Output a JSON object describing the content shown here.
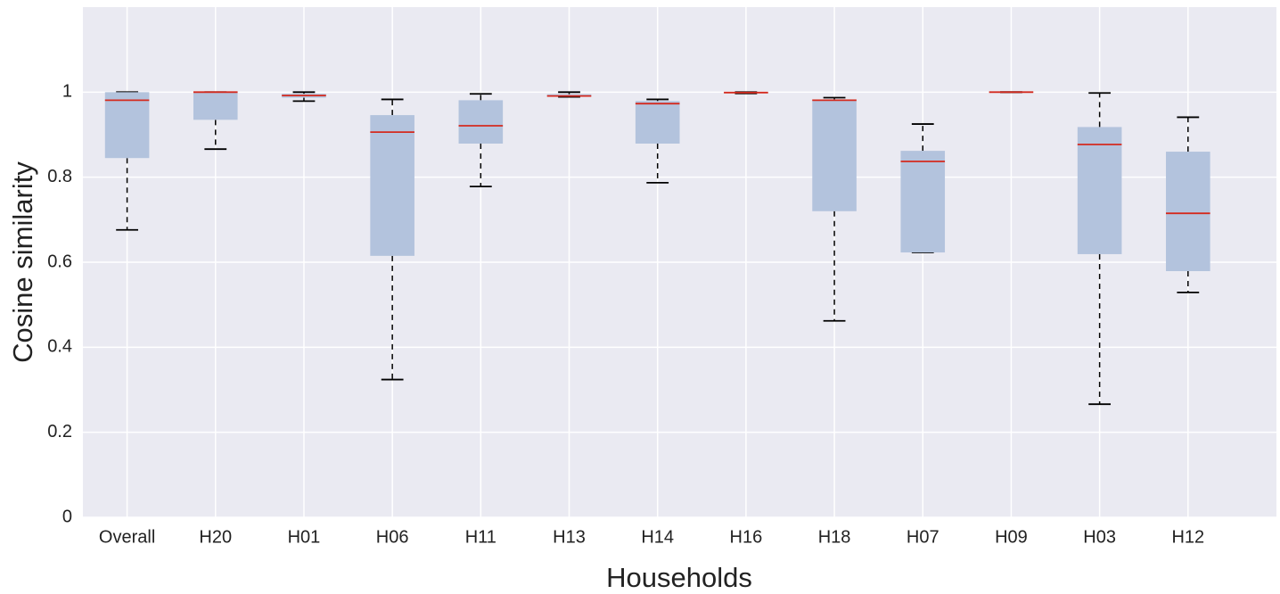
{
  "chart_data": {
    "type": "box",
    "x_label": "Households",
    "y_label": "Cosine similarity",
    "categories": [
      "Overall",
      "H20",
      "H01",
      "H06",
      "H11",
      "H13",
      "H14",
      "H16",
      "H18",
      "H07",
      "H09",
      "H03",
      "H12"
    ],
    "whislo": [
      0.676,
      0.866,
      0.979,
      0.324,
      0.778,
      0.989,
      0.787,
      0.997,
      0.462,
      0.623,
      1.0,
      0.266,
      0.529
    ],
    "q1": [
      0.845,
      0.935,
      0.987,
      0.615,
      0.879,
      0.99,
      0.879,
      0.998,
      0.72,
      0.623,
      1.0,
      0.619,
      0.579
    ],
    "median": [
      0.981,
      1.0,
      0.992,
      0.906,
      0.921,
      0.991,
      0.973,
      0.999,
      0.981,
      0.837,
      1.0,
      0.877,
      0.715
    ],
    "q3": [
      1.0,
      1.0,
      0.996,
      0.946,
      0.981,
      0.995,
      0.979,
      1.0,
      0.983,
      0.862,
      1.0,
      0.918,
      0.86
    ],
    "whishi": [
      1.0,
      1.0,
      1.0,
      0.983,
      0.996,
      1.0,
      0.983,
      1.0,
      0.987,
      0.925,
      1.0,
      0.998,
      0.941
    ],
    "box_color": "#b3c3dd",
    "median_color": "#d42a1e",
    "whisker_color": "#000000",
    "ylim": [
      0,
      1.2
    ],
    "yticks": [
      0,
      0.2,
      0.4,
      0.6,
      0.8,
      1
    ],
    "grid": true
  }
}
